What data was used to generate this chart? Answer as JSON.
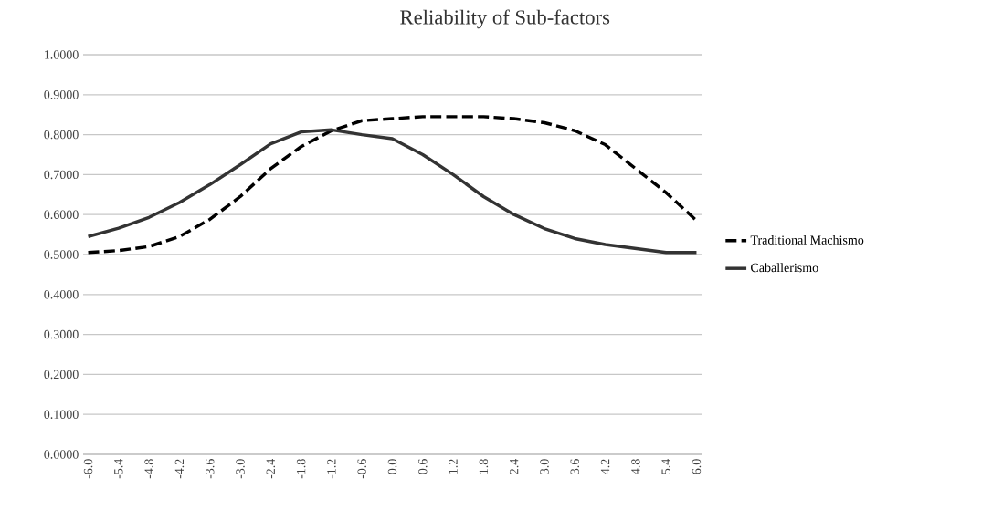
{
  "chart_data": {
    "type": "line",
    "title": "Reliability of Sub-factors",
    "x": [
      -6.0,
      -5.4,
      -4.8,
      -4.2,
      -3.6,
      -3.0,
      -2.4,
      -1.8,
      -1.2,
      -0.6,
      0.0,
      0.6,
      1.2,
      1.8,
      2.4,
      3.0,
      3.6,
      4.2,
      4.8,
      5.4,
      6.0
    ],
    "series": [
      {
        "name": "Traditional Machismo",
        "color": "#000000",
        "line_style": "dashed",
        "values": [
          0.505,
          0.51,
          0.52,
          0.545,
          0.588,
          0.645,
          0.715,
          0.77,
          0.81,
          0.835,
          0.84,
          0.845,
          0.845,
          0.845,
          0.84,
          0.83,
          0.81,
          0.775,
          0.715,
          0.655,
          0.585
        ]
      },
      {
        "name": "Caballerismo",
        "color": "#333333",
        "line_style": "solid",
        "values": [
          0.545,
          0.566,
          0.593,
          0.63,
          0.675,
          0.725,
          0.777,
          0.807,
          0.812,
          0.8,
          0.79,
          0.75,
          0.7,
          0.645,
          0.6,
          0.565,
          0.54,
          0.525,
          0.515,
          0.505,
          0.505
        ]
      }
    ],
    "xlim": [
      -6.1,
      6.1
    ],
    "xticks": [
      {
        "value": -6.0,
        "label": "-6.0"
      },
      {
        "value": -5.4,
        "label": "-5.4"
      },
      {
        "value": -4.8,
        "label": "-4.8"
      },
      {
        "value": -4.2,
        "label": "-4.2"
      },
      {
        "value": -3.6,
        "label": "-3.6"
      },
      {
        "value": -3.0,
        "label": "-3.0"
      },
      {
        "value": -2.4,
        "label": "-2.4"
      },
      {
        "value": -1.8,
        "label": "-1.8"
      },
      {
        "value": -1.2,
        "label": "-1.2"
      },
      {
        "value": -0.6,
        "label": "-0.6"
      },
      {
        "value": 0.0,
        "label": "0.0"
      },
      {
        "value": 0.6,
        "label": "0.6"
      },
      {
        "value": 1.2,
        "label": "1.2"
      },
      {
        "value": 1.8,
        "label": "1.8"
      },
      {
        "value": 2.4,
        "label": "2.4"
      },
      {
        "value": 3.0,
        "label": "3.0"
      },
      {
        "value": 3.6,
        "label": "3.6"
      },
      {
        "value": 4.2,
        "label": "4.2"
      },
      {
        "value": 4.8,
        "label": "4.8"
      },
      {
        "value": 5.4,
        "label": "5.4"
      },
      {
        "value": 6.0,
        "label": "6.0"
      }
    ],
    "ylim": [
      0,
      1
    ],
    "yticks": [
      {
        "value": 0,
        "label": "0.0000"
      },
      {
        "value": 0.1,
        "label": "0.1000"
      },
      {
        "value": 0.2,
        "label": "0.2000"
      },
      {
        "value": 0.3,
        "label": "0.3000"
      },
      {
        "value": 0.4,
        "label": "0.4000"
      },
      {
        "value": 0.5,
        "label": "0.5000"
      },
      {
        "value": 0.6,
        "label": "0.6000"
      },
      {
        "value": 0.7,
        "label": "0.7000"
      },
      {
        "value": 0.8,
        "label": "0.8000"
      },
      {
        "value": 0.9,
        "label": "0.9000"
      },
      {
        "value": 1.0,
        "label": "1.0000"
      }
    ],
    "grid": "y",
    "legend": "right",
    "marker": "none"
  }
}
